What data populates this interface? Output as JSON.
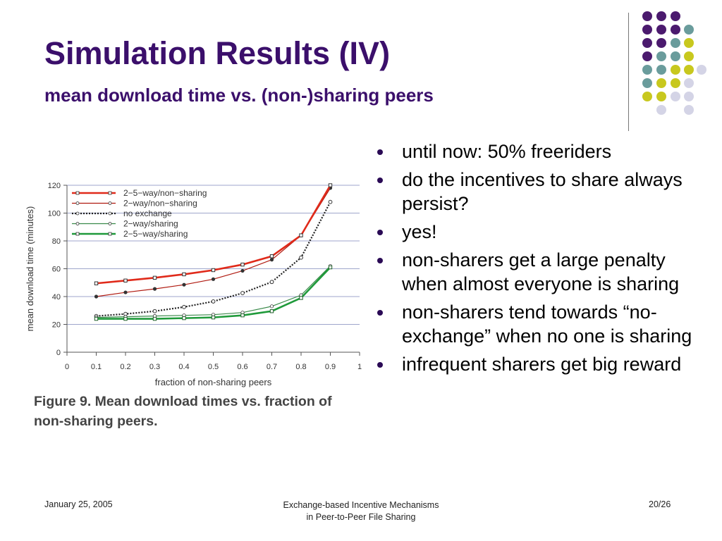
{
  "slide": {
    "title": "Simulation Results (IV)",
    "subtitle": "mean download time vs. (non-)sharing peers",
    "bullets": [
      "until now: 50% freeriders",
      "do the incentives to share always persist?",
      "yes!",
      "non-sharers get a large penalty when almost everyone is sharing",
      "non-sharers tend towards “no-exchange” when no one is sharing",
      "infrequent sharers get big reward"
    ],
    "caption_line1": "Figure 9. Mean download times vs. fraction of",
    "caption_line2": "non-sharing peers."
  },
  "footer": {
    "date": "January 25, 2005",
    "center_line1": "Exchange-based Incentive Mechanisms",
    "center_line2": "in Peer-to-Peer File Sharing",
    "page": "20/26"
  },
  "colors": {
    "title": "#3b0f6b",
    "dot_purple": "#4b1a6e",
    "dot_teal": "#6a9c9c",
    "dot_yellow": "#c8c81e",
    "dot_lavender": "#d4d4e6"
  },
  "chart_data": {
    "type": "line",
    "xlabel": "fraction of non-sharing peers",
    "ylabel": "mean download time (minutes)",
    "xlim": [
      0,
      1
    ],
    "ylim": [
      0,
      120
    ],
    "x_ticks": [
      "0",
      "0.1",
      "0.2",
      "0.3",
      "0.4",
      "0.5",
      "0.6",
      "0.7",
      "0.8",
      "0.9",
      "1"
    ],
    "y_ticks": [
      "0",
      "20",
      "40",
      "60",
      "80",
      "100",
      "120"
    ],
    "grid": true,
    "legend_position": "top-left",
    "x": [
      0.1,
      0.2,
      0.3,
      0.4,
      0.5,
      0.6,
      0.7,
      0.8,
      0.9
    ],
    "series": [
      {
        "name": "2−5−way/non−sharing",
        "color": "#e02a1a",
        "style": "thick",
        "values": [
          49.5,
          51.5,
          53.5,
          56,
          59,
          63,
          69,
          84,
          120
        ]
      },
      {
        "name": "2−way/non−sharing",
        "color": "#b01a10",
        "style": "thin",
        "values": [
          40,
          43,
          45.5,
          48.5,
          52.5,
          58.5,
          66.5,
          84,
          118
        ]
      },
      {
        "name": "no exchange",
        "color": "#222222",
        "style": "dotted",
        "values": [
          26,
          27.5,
          29.5,
          32.5,
          36.5,
          42.5,
          50.5,
          68,
          108
        ]
      },
      {
        "name": "2−way/sharing",
        "color": "#3a8a4a",
        "style": "thin",
        "values": [
          25,
          25.5,
          26,
          26.5,
          27,
          28.5,
          33,
          41,
          62
        ]
      },
      {
        "name": "2−5−way/sharing",
        "color": "#1f9a3a",
        "style": "thick",
        "values": [
          24,
          24,
          24,
          24.5,
          25,
          26.5,
          29.5,
          39,
          61
        ]
      }
    ]
  }
}
